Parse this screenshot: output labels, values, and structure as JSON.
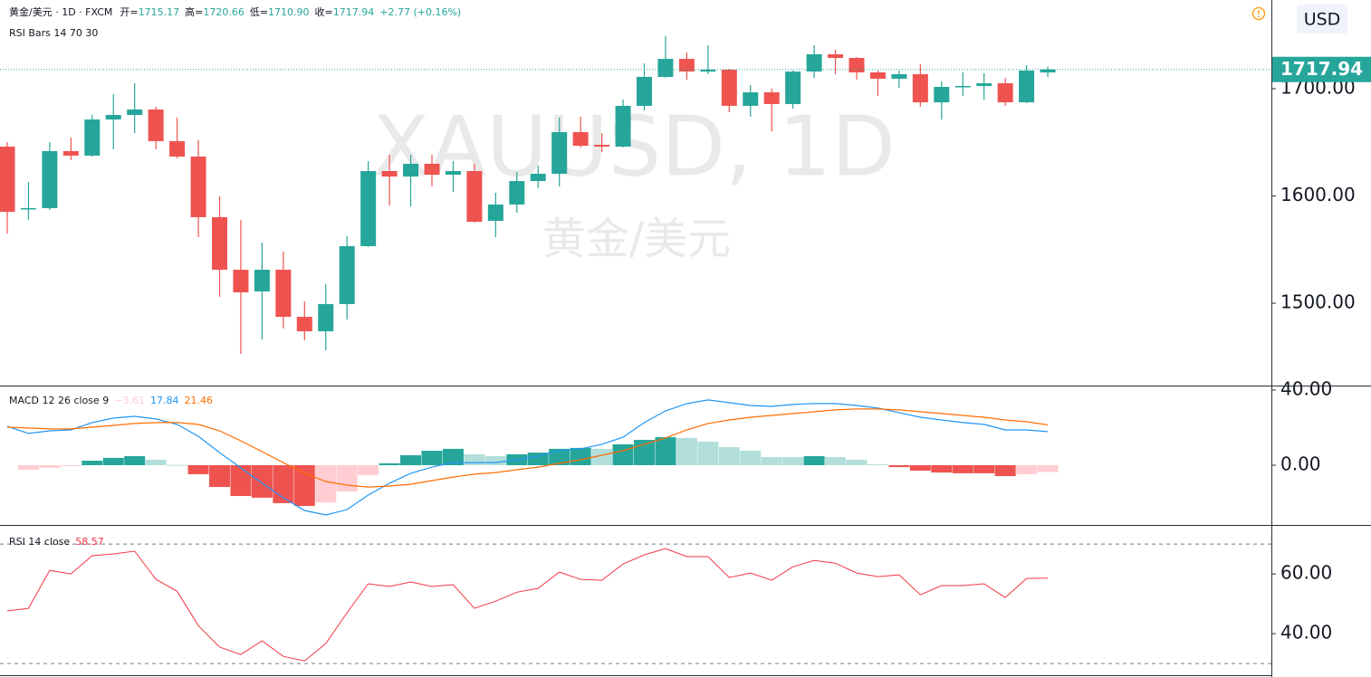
{
  "chart_data": [
    {
      "type": "candlestick",
      "title": "黄金/美元 · 1D · FXCM",
      "watermark": "XAUUSD, 1D",
      "watermark_subtitle": "黄金/美元",
      "indicator_label": "RSI Bars 14 70 30",
      "currency": "USD",
      "ohlc_legend": [
        {
          "name": "开=",
          "text": "1715.17"
        },
        {
          "name": "高=",
          "text": "1720.66"
        },
        {
          "name": "低=",
          "text": "1710.90"
        },
        {
          "name": "收=",
          "text": "1717.94"
        }
      ],
      "change": "+2.77 (+0.16%)",
      "up_color": "#26a69a",
      "down_color": "#ef5350",
      "open": [
        1646.0,
        1587.8,
        1588.6,
        1641.8,
        1637.6,
        1671.3,
        1675.5,
        1680.6,
        1651.1,
        1636.7,
        1580.2,
        1531.2,
        1511.0,
        1531.2,
        1487.3,
        1473.8,
        1499.2,
        1553.2,
        1623.2,
        1618.1,
        1630.0,
        1619.8,
        1623.2,
        1576.8,
        1592.0,
        1613.9,
        1620.7,
        1659.5,
        1647.7,
        1646.0,
        1684.0,
        1711.0,
        1727.8,
        1716.0,
        1717.7,
        1684.0,
        1696.6,
        1685.7,
        1716.0,
        1732.1,
        1728.7,
        1715.2,
        1709.3,
        1713.5,
        1687.3,
        1701.7,
        1702.5,
        1705.1,
        1687.3,
        1715.17
      ],
      "high": [
        1650.2,
        1613.1,
        1650.2,
        1654.4,
        1675.5,
        1694.9,
        1705.1,
        1683.1,
        1673.0,
        1651.9,
        1599.6,
        1577.6,
        1556.5,
        1548.1,
        1501.7,
        1517.7,
        1562.4,
        1632.5,
        1638.4,
        1638.4,
        1638.4,
        1632.5,
        1630.0,
        1603.0,
        1622.4,
        1628.3,
        1673.0,
        1673.8,
        1658.6,
        1689.9,
        1723.6,
        1748.9,
        1733.8,
        1740.5,
        1718.5,
        1703.4,
        1700.0,
        1716.9,
        1740.5,
        1736.3,
        1729.5,
        1716.9,
        1716.9,
        1722.8,
        1706.8,
        1715.2,
        1714.3,
        1710.1,
        1721.9,
        1720.66
      ],
      "low": [
        1565.0,
        1577.6,
        1586.9,
        1633.3,
        1636.7,
        1643.5,
        1658.6,
        1643.5,
        1635.0,
        1561.6,
        1505.9,
        1452.7,
        1466.2,
        1476.4,
        1465.4,
        1456.1,
        1484.8,
        1552.4,
        1591.1,
        1590.3,
        1608.9,
        1603.8,
        1575.1,
        1561.6,
        1584.4,
        1607.2,
        1608.9,
        1645.1,
        1640.9,
        1645.1,
        1679.7,
        1710.1,
        1708.4,
        1713.5,
        1678.1,
        1673.8,
        1660.3,
        1681.4,
        1710.1,
        1713.5,
        1708.4,
        1693.2,
        1700.8,
        1683.1,
        1671.3,
        1693.2,
        1689.9,
        1684.0,
        1686.5,
        1710.9
      ],
      "close": [
        1585.2,
        1588.6,
        1641.8,
        1637.6,
        1671.3,
        1675.5,
        1680.6,
        1651.1,
        1636.7,
        1580.2,
        1531.2,
        1510.1,
        1531.2,
        1487.3,
        1473.8,
        1499.2,
        1553.2,
        1623.2,
        1618.1,
        1630.0,
        1619.8,
        1623.2,
        1575.9,
        1592.0,
        1613.9,
        1620.7,
        1659.5,
        1646.8,
        1646.0,
        1684.0,
        1711.0,
        1727.8,
        1716.0,
        1717.7,
        1684.0,
        1696.6,
        1685.7,
        1716.0,
        1732.1,
        1728.7,
        1715.2,
        1709.3,
        1713.5,
        1687.3,
        1701.7,
        1702.5,
        1705.1,
        1687.3,
        1716.9,
        1717.94
      ],
      "ylim": [
        1423.2,
        1782.7
      ],
      "yticks": [
        {
          "value": 1500,
          "label": "1500.00"
        },
        {
          "value": 1600,
          "label": "1600.00"
        },
        {
          "value": 1700,
          "label": "1700.00"
        }
      ]
    },
    {
      "type": "macd",
      "title": "MACD 12 26 close 9",
      "series": [
        {
          "kind": "histogram",
          "color": "#26a69a",
          "last_value_label": "−3.61",
          "values": [
            null,
            -2.4,
            -1.4,
            -0.5,
            2.4,
            3.9,
            4.8,
            2.9,
            0.2,
            -4.8,
            -11.6,
            -16.4,
            -17.3,
            -20.2,
            -21.7,
            -19.8,
            -14.0,
            -5.3,
            1.0,
            5.3,
            7.7,
            8.7,
            5.8,
            4.8,
            5.8,
            6.7,
            8.7,
            9.2,
            8.7,
            11.1,
            13.5,
            14.9,
            14.5,
            12.5,
            9.6,
            7.7,
            4.3,
            4.3,
            4.8,
            4.3,
            2.9,
            0.5,
            -1.0,
            -2.9,
            -3.9,
            -4.3,
            -4.3,
            -5.8,
            -4.8,
            -3.61
          ]
        },
        {
          "kind": "line",
          "color": "#2196f3",
          "values": [
            20.7,
            16.9,
            18.3,
            18.8,
            22.7,
            25.1,
            26.0,
            24.6,
            21.7,
            15.4,
            6.7,
            -1.4,
            -9.6,
            -17.3,
            -24.1,
            -26.5,
            -23.6,
            -15.9,
            -9.6,
            -4.3,
            -1.0,
            1.4,
            1.4,
            1.4,
            2.9,
            4.8,
            7.7,
            8.7,
            11.1,
            14.9,
            22.7,
            28.9,
            32.8,
            34.7,
            33.3,
            31.8,
            31.3,
            32.3,
            32.8,
            32.8,
            31.8,
            30.4,
            28.0,
            25.5,
            24.1,
            22.7,
            21.7,
            18.8,
            18.8,
            17.84
          ]
        },
        {
          "kind": "line",
          "color": "#ff6d00",
          "values": [
            20.2,
            19.8,
            19.3,
            19.3,
            20.2,
            21.2,
            22.2,
            22.7,
            22.7,
            21.7,
            18.3,
            13.0,
            7.2,
            1.4,
            -4.3,
            -8.7,
            -10.6,
            -11.6,
            -11.1,
            -10.1,
            -8.2,
            -6.3,
            -4.8,
            -3.9,
            -2.4,
            -1.0,
            1.0,
            2.9,
            5.3,
            7.7,
            11.1,
            14.5,
            18.8,
            22.2,
            24.1,
            25.5,
            26.5,
            27.5,
            28.4,
            29.4,
            29.9,
            29.9,
            29.4,
            28.4,
            27.5,
            26.5,
            25.5,
            24.1,
            23.1,
            21.46
          ]
        }
      ],
      "hist_colors": {
        "up_strong": "#26a69a",
        "up_weak": "#b2dfdb",
        "down_strong": "#ef5350",
        "down_weak": "#ffcdd2"
      },
      "ylim": [
        -31.8,
        41.9
      ],
      "yticks": [
        {
          "value": 0,
          "label": "0.00"
        },
        {
          "value": 40,
          "label": "40.00"
        }
      ]
    },
    {
      "type": "rsi",
      "title": "RSI 14 close",
      "color": "#f23645",
      "values": [
        47.6,
        48.5,
        61.2,
        60.0,
        66.1,
        66.7,
        67.6,
        58.2,
        54.2,
        42.7,
        35.5,
        33.0,
        37.6,
        32.4,
        30.9,
        36.7,
        47.0,
        56.7,
        55.8,
        57.3,
        55.8,
        56.4,
        48.5,
        50.9,
        53.9,
        55.2,
        60.6,
        58.2,
        57.9,
        63.3,
        66.4,
        68.5,
        65.8,
        65.8,
        58.8,
        60.3,
        57.9,
        62.4,
        64.5,
        63.6,
        60.3,
        59.1,
        59.7,
        53.0,
        56.1,
        56.1,
        56.7,
        52.1,
        58.5,
        58.57
      ],
      "bands": [
        70,
        30
      ],
      "ylim": [
        26.4,
        76.1
      ],
      "yticks": [
        {
          "value": 40,
          "label": "40.00"
        },
        {
          "value": 60,
          "label": "60.00"
        }
      ]
    }
  ]
}
